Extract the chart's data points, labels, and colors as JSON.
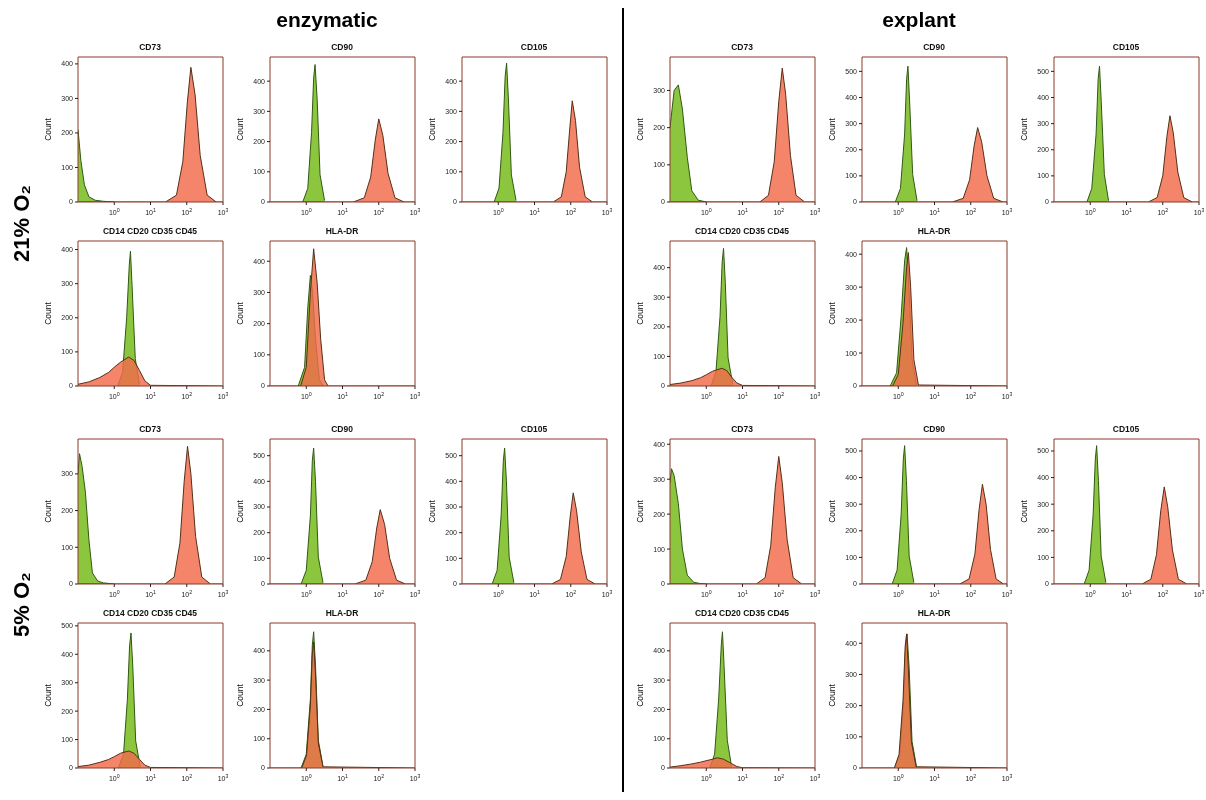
{
  "chart_data": [
    {
      "type": "area",
      "title": "CD73",
      "ylabel": "Count",
      "annotations": [
        "enzymatic",
        "21% O₂"
      ],
      "log": "x",
      "xlim": [
        0.1,
        1000
      ],
      "xticks": [
        {
          "value": 1,
          "label": "10$^{0}$"
        },
        {
          "value": 10,
          "label": "10$^{1}$"
        },
        {
          "value": 100,
          "label": "10$^{2}$"
        },
        {
          "value": 1000,
          "label": "10$^{3}$"
        }
      ],
      "ylim": [
        0,
        420
      ],
      "yticks": [
        0,
        100,
        200,
        300,
        400
      ],
      "series": [
        {
          "color": "#8cc63f",
          "x": [
            0.1,
            0.12,
            0.15,
            0.2,
            0.3,
            0.5,
            1
          ],
          "values": [
            210,
            120,
            50,
            15,
            5,
            2,
            0
          ]
        },
        {
          "color": "#f26a4b",
          "x": [
            0.1,
            26,
            52,
            78,
            104,
            130,
            170,
            235,
            365,
            650,
            1000
          ],
          "values": [
            0,
            0,
            20,
            117,
            290,
            390,
            310,
            135,
            20,
            0,
            0
          ]
        }
      ]
    },
    {
      "type": "area",
      "title": "CD90",
      "ylabel": "Count",
      "log": "x",
      "xlim": [
        0.1,
        1000
      ],
      "xticks": [
        {
          "value": 1,
          "label": "10$^{0}$"
        },
        {
          "value": 10,
          "label": "10$^{1}$"
        },
        {
          "value": 100,
          "label": "10$^{2}$"
        },
        {
          "value": 1000,
          "label": "10$^{3}$"
        }
      ],
      "ylim": [
        0,
        480
      ],
      "yticks": [
        0,
        100,
        200,
        300,
        400
      ],
      "series": [
        {
          "color": "#8cc63f",
          "x": [
            0.8,
            1.1,
            1.4,
            1.6,
            1.75,
            2,
            2.4,
            3.2
          ],
          "values": [
            0,
            45,
            230,
            410,
            455,
            340,
            90,
            5
          ]
        },
        {
          "color": "#f26a4b",
          "x": [
            0.1,
            20,
            40,
            60,
            80,
            100,
            130,
            180,
            280,
            500,
            1000
          ],
          "values": [
            0,
            0,
            14,
            83,
            205,
            275,
            220,
            95,
            14,
            0,
            0
          ]
        }
      ]
    },
    {
      "type": "area",
      "title": "CD105",
      "ylabel": "Count",
      "log": "x",
      "xlim": [
        0.1,
        1000
      ],
      "xticks": [
        {
          "value": 1,
          "label": "10$^{0}$"
        },
        {
          "value": 10,
          "label": "10$^{1}$"
        },
        {
          "value": 100,
          "label": "10$^{2}$"
        },
        {
          "value": 1000,
          "label": "10$^{3}$"
        }
      ],
      "ylim": [
        0,
        480
      ],
      "yticks": [
        0,
        100,
        200,
        300,
        400
      ],
      "series": [
        {
          "color": "#8cc63f",
          "x": [
            0.77,
            1.05,
            1.35,
            1.55,
            1.7,
            1.9,
            2.3,
            3.1
          ],
          "values": [
            0,
            46,
            230,
            415,
            460,
            345,
            90,
            5
          ]
        },
        {
          "color": "#f26a4b",
          "x": [
            0.1,
            33,
            55,
            75,
            95,
            110,
            135,
            175,
            250,
            400,
            1000
          ],
          "values": [
            0,
            0,
            17,
            100,
            250,
            335,
            270,
            115,
            17,
            0,
            0
          ]
        }
      ]
    },
    {
      "type": "area",
      "title": "CD14 CD20 CD35 CD45",
      "ylabel": "Count",
      "log": "x",
      "xlim": [
        0.1,
        1000
      ],
      "xticks": [
        {
          "value": 1,
          "label": "10$^{0}$"
        },
        {
          "value": 10,
          "label": "10$^{1}$"
        },
        {
          "value": 100,
          "label": "10$^{2}$"
        },
        {
          "value": 1000,
          "label": "10$^{3}$"
        }
      ],
      "ylim": [
        0,
        425
      ],
      "yticks": [
        0,
        100,
        200,
        300,
        400
      ],
      "series": [
        {
          "color": "#8cc63f",
          "x": [
            1.25,
            1.7,
            2.2,
            2.6,
            2.8,
            3.1,
            3.8,
            5
          ],
          "values": [
            0,
            40,
            200,
            355,
            395,
            295,
            80,
            4
          ]
        },
        {
          "color": "#f26a4b",
          "x": [
            0.1,
            0.2,
            0.4,
            0.7,
            1,
            1.5,
            2.5,
            3.5,
            5,
            7,
            10,
            1000
          ],
          "values": [
            5,
            12,
            25,
            40,
            55,
            70,
            85,
            75,
            45,
            15,
            2,
            0
          ]
        }
      ]
    },
    {
      "type": "area",
      "title": "HLA-DR",
      "ylabel": "Count",
      "log": "x",
      "xlim": [
        0.1,
        1000
      ],
      "xticks": [
        {
          "value": 1,
          "label": "10$^{0}$"
        },
        {
          "value": 10,
          "label": "10$^{1}$"
        },
        {
          "value": 100,
          "label": "10$^{2}$"
        },
        {
          "value": 1000,
          "label": "10$^{3}$"
        }
      ],
      "ylim": [
        0,
        465
      ],
      "yticks": [
        0,
        100,
        200,
        300,
        400
      ],
      "series": [
        {
          "color": "#8cc63f",
          "x": [
            0.6,
            0.9,
            1.1,
            1.3,
            1.5,
            1.8,
            2.3,
            3
          ],
          "values": [
            0,
            60,
            250,
            355,
            300,
            150,
            20,
            0
          ]
        },
        {
          "color": "#f26a4b",
          "x": [
            0.1,
            0.7,
            1,
            1.3,
            1.6,
            2,
            2.5,
            3.2,
            4,
            1000
          ],
          "values": [
            0,
            0,
            60,
            300,
            440,
            330,
            150,
            20,
            0,
            0
          ]
        }
      ]
    },
    {
      "type": "area",
      "title": "CD73",
      "ylabel": "Count",
      "log": "x",
      "xlim": [
        0.1,
        1000
      ],
      "xticks": [
        {
          "value": 1,
          "label": "10$^{0}$"
        },
        {
          "value": 10,
          "label": "10$^{1}$"
        },
        {
          "value": 100,
          "label": "10$^{2}$"
        },
        {
          "value": 1000,
          "label": "10$^{3}$"
        }
      ],
      "ylim": [
        0,
        390
      ],
      "yticks": [
        0,
        100,
        200,
        300
      ],
      "series": [
        {
          "color": "#8cc63f",
          "x": [
            0.1,
            0.13,
            0.17,
            0.22,
            0.3,
            0.4,
            0.6,
            1
          ],
          "values": [
            200,
            300,
            315,
            250,
            120,
            30,
            5,
            0
          ]
        },
        {
          "color": "#f26a4b",
          "x": [
            0.1,
            30,
            52,
            75,
            100,
            125,
            155,
            210,
            300,
            520,
            1000
          ],
          "values": [
            0,
            0,
            18,
            108,
            270,
            360,
            290,
            125,
            18,
            0,
            0
          ]
        }
      ]
    },
    {
      "type": "area",
      "title": "CD90",
      "ylabel": "Count",
      "annotations": [
        "explant"
      ],
      "log": "x",
      "xlim": [
        0.1,
        1000
      ],
      "xticks": [
        {
          "value": 1,
          "label": "10$^{0}$"
        },
        {
          "value": 10,
          "label": "10$^{1}$"
        },
        {
          "value": 100,
          "label": "10$^{2}$"
        },
        {
          "value": 1000,
          "label": "10$^{3}$"
        }
      ],
      "ylim": [
        0,
        555
      ],
      "yticks": [
        0,
        100,
        200,
        300,
        400,
        500
      ],
      "series": [
        {
          "color": "#8cc63f",
          "x": [
            0.83,
            1.15,
            1.5,
            1.7,
            1.85,
            2.05,
            2.5,
            3.3
          ],
          "values": [
            0,
            52,
            260,
            470,
            520,
            390,
            105,
            5
          ]
        },
        {
          "color": "#f26a4b",
          "x": [
            0.1,
            31,
            62,
            93,
            124,
            155,
            200,
            280,
            430,
            780,
            1000
          ],
          "values": [
            0,
            0,
            14,
            85,
            215,
            285,
            230,
            100,
            14,
            0,
            0
          ]
        }
      ]
    },
    {
      "type": "area",
      "title": "CD105",
      "ylabel": "Count",
      "log": "x",
      "xlim": [
        0.1,
        1000
      ],
      "xticks": [
        {
          "value": 1,
          "label": "10$^{0}$"
        },
        {
          "value": 10,
          "label": "10$^{1}$"
        },
        {
          "value": 100,
          "label": "10$^{2}$"
        },
        {
          "value": 1000,
          "label": "10$^{3}$"
        }
      ],
      "ylim": [
        0,
        555
      ],
      "yticks": [
        0,
        100,
        200,
        300,
        400,
        500
      ],
      "series": [
        {
          "color": "#8cc63f",
          "x": [
            0.81,
            1.1,
            1.45,
            1.65,
            1.8,
            2,
            2.45,
            3.2
          ],
          "values": [
            0,
            52,
            260,
            470,
            520,
            390,
            105,
            5
          ]
        },
        {
          "color": "#f26a4b",
          "x": [
            0.1,
            40,
            70,
            100,
            130,
            158,
            195,
            260,
            380,
            650,
            1000
          ],
          "values": [
            0,
            0,
            17,
            100,
            250,
            330,
            265,
            115,
            17,
            0,
            0
          ]
        }
      ]
    },
    {
      "type": "area",
      "title": "CD14 CD20 CD35 CD45",
      "ylabel": "Count",
      "log": "x",
      "xlim": [
        0.1,
        1000
      ],
      "xticks": [
        {
          "value": 1,
          "label": "10$^{0}$"
        },
        {
          "value": 10,
          "label": "10$^{1}$"
        },
        {
          "value": 100,
          "label": "10$^{2}$"
        },
        {
          "value": 1000,
          "label": "10$^{3}$"
        }
      ],
      "ylim": [
        0,
        490
      ],
      "yticks": [
        0,
        100,
        200,
        300,
        400
      ],
      "series": [
        {
          "color": "#8cc63f",
          "x": [
            1.35,
            1.85,
            2.4,
            2.75,
            3,
            3.35,
            4,
            5.4
          ],
          "values": [
            0,
            47,
            235,
            420,
            465,
            350,
            95,
            5
          ]
        },
        {
          "color": "#f26a4b",
          "x": [
            0.1,
            0.2,
            0.4,
            0.7,
            1,
            1.5,
            2.7,
            3.7,
            5,
            7,
            10,
            1000
          ],
          "values": [
            5,
            10,
            18,
            28,
            38,
            50,
            60,
            52,
            30,
            10,
            2,
            0
          ]
        }
      ]
    },
    {
      "type": "area",
      "title": "HLA-DR",
      "ylabel": "Count",
      "log": "x",
      "xlim": [
        0.1,
        1000
      ],
      "xticks": [
        {
          "value": 1,
          "label": "10$^{0}$"
        },
        {
          "value": 10,
          "label": "10$^{1}$"
        },
        {
          "value": 100,
          "label": "10$^{2}$"
        },
        {
          "value": 1000,
          "label": "10$^{3}$"
        }
      ],
      "ylim": [
        0,
        440
      ],
      "yticks": [
        0,
        100,
        200,
        300,
        400
      ],
      "series": [
        {
          "color": "#8cc63f",
          "x": [
            0.6,
            0.9,
            1.2,
            1.5,
            1.7,
            1.95,
            2.4,
            3.2
          ],
          "values": [
            0,
            40,
            210,
            380,
            420,
            310,
            80,
            3
          ]
        },
        {
          "color": "#f26a4b",
          "x": [
            0.1,
            0.7,
            1,
            1.35,
            1.7,
            1.9,
            2.2,
            2.7,
            3.6,
            1000
          ],
          "values": [
            0,
            0,
            35,
            190,
            360,
            405,
            300,
            80,
            3,
            0
          ]
        }
      ]
    },
    {
      "type": "area",
      "title": "CD73",
      "ylabel": "Count",
      "annotations": [
        "5% O₂"
      ],
      "log": "x",
      "xlim": [
        0.1,
        1000
      ],
      "xticks": [
        {
          "value": 1,
          "label": "10$^{0}$"
        },
        {
          "value": 10,
          "label": "10$^{1}$"
        },
        {
          "value": 100,
          "label": "10$^{2}$"
        },
        {
          "value": 1000,
          "label": "10$^{3}$"
        }
      ],
      "ylim": [
        0,
        395
      ],
      "yticks": [
        0,
        100,
        200,
        300
      ],
      "series": [
        {
          "color": "#8cc63f",
          "x": [
            0.1,
            0.11,
            0.13,
            0.16,
            0.2,
            0.25,
            0.35,
            0.5,
            1
          ],
          "values": [
            300,
            355,
            320,
            250,
            120,
            30,
            8,
            3,
            0
          ]
        },
        {
          "color": "#f26a4b",
          "x": [
            0.1,
            25,
            45,
            65,
            85,
            105,
            130,
            175,
            260,
            450,
            1000
          ],
          "values": [
            0,
            0,
            19,
            112,
            280,
            375,
            300,
            130,
            19,
            0,
            0
          ]
        }
      ]
    },
    {
      "type": "area",
      "title": "CD90",
      "ylabel": "Count",
      "log": "x",
      "xlim": [
        0.1,
        1000
      ],
      "xticks": [
        {
          "value": 1,
          "label": "10$^{0}$"
        },
        {
          "value": 10,
          "label": "10$^{1}$"
        },
        {
          "value": 100,
          "label": "10$^{2}$"
        },
        {
          "value": 1000,
          "label": "10$^{3}$"
        }
      ],
      "ylim": [
        0,
        565
      ],
      "yticks": [
        0,
        100,
        200,
        300,
        400,
        500
      ],
      "series": [
        {
          "color": "#8cc63f",
          "x": [
            0.72,
            1,
            1.3,
            1.47,
            1.6,
            1.8,
            2.15,
            2.9
          ],
          "values": [
            0,
            53,
            265,
            480,
            530,
            400,
            105,
            5
          ]
        },
        {
          "color": "#f26a4b",
          "x": [
            0.1,
            22,
            44,
            66,
            88,
            110,
            145,
            200,
            310,
            550,
            1000
          ],
          "values": [
            0,
            0,
            15,
            87,
            218,
            290,
            232,
            100,
            15,
            0,
            0
          ]
        }
      ]
    },
    {
      "type": "area",
      "title": "CD105",
      "ylabel": "Count",
      "log": "x",
      "xlim": [
        0.1,
        1000
      ],
      "xticks": [
        {
          "value": 1,
          "label": "10$^{0}$"
        },
        {
          "value": 10,
          "label": "10$^{1}$"
        },
        {
          "value": 100,
          "label": "10$^{2}$"
        },
        {
          "value": 1000,
          "label": "10$^{3}$"
        }
      ],
      "ylim": [
        0,
        565
      ],
      "yticks": [
        0,
        100,
        200,
        300,
        400,
        500
      ],
      "series": [
        {
          "color": "#8cc63f",
          "x": [
            0.68,
            0.93,
            1.2,
            1.38,
            1.5,
            1.68,
            2,
            2.7
          ],
          "values": [
            0,
            53,
            265,
            480,
            530,
            400,
            105,
            5
          ]
        },
        {
          "color": "#f26a4b",
          "x": [
            0.1,
            30,
            52,
            75,
            97,
            117,
            145,
            195,
            280,
            470,
            1000
          ],
          "values": [
            0,
            0,
            18,
            107,
            265,
            355,
            285,
            125,
            18,
            0,
            0
          ]
        }
      ]
    },
    {
      "type": "area",
      "title": "CD14 CD20 CD35 CD45",
      "ylabel": "Count",
      "log": "x",
      "xlim": [
        0.1,
        1000
      ],
      "xticks": [
        {
          "value": 1,
          "label": "10$^{0}$"
        },
        {
          "value": 10,
          "label": "10$^{1}$"
        },
        {
          "value": 100,
          "label": "10$^{2}$"
        },
        {
          "value": 1000,
          "label": "10$^{3}$"
        }
      ],
      "ylim": [
        0,
        510
      ],
      "yticks": [
        0,
        100,
        200,
        300,
        400,
        500
      ],
      "series": [
        {
          "color": "#8cc63f",
          "x": [
            1.3,
            1.8,
            2.3,
            2.65,
            2.9,
            3.25,
            3.9,
            5.2
          ],
          "values": [
            0,
            48,
            240,
            430,
            475,
            355,
            95,
            5
          ]
        },
        {
          "color": "#f26a4b",
          "x": [
            0.1,
            0.2,
            0.4,
            0.7,
            1,
            1.5,
            2.5,
            3.5,
            5,
            7,
            10,
            1000
          ],
          "values": [
            5,
            10,
            20,
            30,
            40,
            52,
            60,
            52,
            30,
            10,
            2,
            0
          ]
        }
      ]
    },
    {
      "type": "area",
      "title": "HLA-DR",
      "ylabel": "Count",
      "log": "x",
      "xlim": [
        0.1,
        1000
      ],
      "xticks": [
        {
          "value": 1,
          "label": "10$^{0}$"
        },
        {
          "value": 10,
          "label": "10$^{1}$"
        },
        {
          "value": 100,
          "label": "10$^{2}$"
        },
        {
          "value": 1000,
          "label": "10$^{3}$"
        }
      ],
      "ylim": [
        0,
        495
      ],
      "yticks": [
        0,
        100,
        200,
        300,
        400
      ],
      "series": [
        {
          "color": "#8cc63f",
          "x": [
            0.72,
            1,
            1.3,
            1.47,
            1.6,
            1.8,
            2.15,
            2.9
          ],
          "values": [
            0,
            47,
            235,
            420,
            465,
            350,
            95,
            5
          ]
        },
        {
          "color": "#f26a4b",
          "x": [
            0.1,
            0.75,
            1.02,
            1.3,
            1.47,
            1.6,
            1.8,
            2.15,
            2.9,
            1000
          ],
          "values": [
            0,
            0,
            43,
            215,
            390,
            430,
            320,
            85,
            4,
            0
          ]
        }
      ]
    },
    {
      "type": "area",
      "title": "CD73",
      "ylabel": "Count",
      "log": "x",
      "xlim": [
        0.1,
        1000
      ],
      "xticks": [
        {
          "value": 1,
          "label": "10$^{0}$"
        },
        {
          "value": 10,
          "label": "10$^{1}$"
        },
        {
          "value": 100,
          "label": "10$^{2}$"
        },
        {
          "value": 1000,
          "label": "10$^{3}$"
        }
      ],
      "ylim": [
        0,
        415
      ],
      "yticks": [
        0,
        100,
        200,
        300,
        400
      ],
      "series": [
        {
          "color": "#8cc63f",
          "x": [
            0.1,
            0.11,
            0.13,
            0.17,
            0.22,
            0.3,
            0.45,
            0.7,
            1
          ],
          "values": [
            290,
            330,
            310,
            230,
            100,
            25,
            5,
            1,
            0
          ]
        },
        {
          "color": "#f26a4b",
          "x": [
            0.1,
            24,
            42,
            60,
            80,
            100,
            125,
            170,
            250,
            430,
            1000
          ],
          "values": [
            0,
            0,
            18,
            110,
            275,
            365,
            290,
            128,
            18,
            0,
            0
          ]
        }
      ]
    },
    {
      "type": "area",
      "title": "CD90",
      "ylabel": "Count",
      "log": "x",
      "xlim": [
        0.1,
        1000
      ],
      "xticks": [
        {
          "value": 1,
          "label": "10$^{0}$"
        },
        {
          "value": 10,
          "label": "10$^{1}$"
        },
        {
          "value": 100,
          "label": "10$^{2}$"
        },
        {
          "value": 1000,
          "label": "10$^{3}$"
        }
      ],
      "ylim": [
        0,
        545
      ],
      "yticks": [
        0,
        100,
        200,
        300,
        400,
        500
      ],
      "series": [
        {
          "color": "#8cc63f",
          "x": [
            0.68,
            0.93,
            1.2,
            1.38,
            1.5,
            1.68,
            2,
            2.7
          ],
          "values": [
            0,
            52,
            260,
            470,
            520,
            390,
            105,
            5
          ]
        },
        {
          "color": "#f26a4b",
          "x": [
            0.1,
            50,
            90,
            130,
            170,
            210,
            265,
            350,
            500,
            800,
            1000
          ],
          "values": [
            0,
            0,
            19,
            112,
            280,
            375,
            300,
            130,
            19,
            0,
            0
          ]
        }
      ]
    },
    {
      "type": "area",
      "title": "CD105",
      "ylabel": "Count",
      "log": "x",
      "xlim": [
        0.1,
        1000
      ],
      "xticks": [
        {
          "value": 1,
          "label": "10$^{0}$"
        },
        {
          "value": 10,
          "label": "10$^{1}$"
        },
        {
          "value": 100,
          "label": "10$^{2}$"
        },
        {
          "value": 1000,
          "label": "10$^{3}$"
        }
      ],
      "ylim": [
        0,
        545
      ],
      "yticks": [
        0,
        100,
        200,
        300,
        400,
        500
      ],
      "series": [
        {
          "color": "#8cc63f",
          "x": [
            0.68,
            0.93,
            1.2,
            1.38,
            1.5,
            1.68,
            2,
            2.7
          ],
          "values": [
            0,
            52,
            260,
            470,
            520,
            390,
            105,
            5
          ]
        },
        {
          "color": "#f26a4b",
          "x": [
            0.1,
            27,
            47,
            67,
            88,
            110,
            137,
            185,
            270,
            460,
            1000
          ],
          "values": [
            0,
            0,
            18,
            110,
            275,
            365,
            290,
            128,
            18,
            0,
            0
          ]
        }
      ]
    },
    {
      "type": "area",
      "title": "CD14 CD20 CD35 CD45",
      "ylabel": "Count",
      "log": "x",
      "xlim": [
        0.1,
        1000
      ],
      "xticks": [
        {
          "value": 1,
          "label": "10$^{0}$"
        },
        {
          "value": 10,
          "label": "10$^{1}$"
        },
        {
          "value": 100,
          "label": "10$^{2}$"
        },
        {
          "value": 1000,
          "label": "10$^{3}$"
        }
      ],
      "ylim": [
        0,
        495
      ],
      "yticks": [
        0,
        100,
        200,
        300,
        400
      ],
      "series": [
        {
          "color": "#8cc63f",
          "x": [
            1.25,
            1.7,
            2.2,
            2.6,
            2.8,
            3.1,
            3.8,
            5
          ],
          "values": [
            0,
            47,
            235,
            420,
            465,
            350,
            95,
            5
          ]
        },
        {
          "color": "#f26a4b",
          "x": [
            0.1,
            0.2,
            0.4,
            0.7,
            1,
            1.5,
            2,
            3,
            5,
            7,
            10,
            1000
          ],
          "values": [
            3,
            8,
            14,
            20,
            25,
            30,
            35,
            30,
            15,
            5,
            1,
            0
          ]
        }
      ]
    },
    {
      "type": "area",
      "title": "HLA-DR",
      "ylabel": "Count",
      "log": "x",
      "xlim": [
        0.1,
        1000
      ],
      "xticks": [
        {
          "value": 1,
          "label": "10$^{0}$"
        },
        {
          "value": 10,
          "label": "10$^{1}$"
        },
        {
          "value": 100,
          "label": "10$^{2}$"
        },
        {
          "value": 1000,
          "label": "10$^{3}$"
        }
      ],
      "ylim": [
        0,
        465
      ],
      "yticks": [
        0,
        100,
        200,
        300,
        400
      ],
      "series": [
        {
          "color": "#8cc63f",
          "x": [
            0.8,
            1.1,
            1.4,
            1.6,
            1.75,
            2,
            2.4,
            3.2
          ],
          "values": [
            0,
            43,
            215,
            390,
            430,
            320,
            85,
            4
          ]
        },
        {
          "color": "#f26a4b",
          "x": [
            0.1,
            0.78,
            1.05,
            1.35,
            1.55,
            1.7,
            1.9,
            2.3,
            3.1,
            1000
          ],
          "values": [
            0,
            0,
            43,
            215,
            390,
            430,
            320,
            85,
            4,
            0
          ]
        }
      ]
    }
  ]
}
